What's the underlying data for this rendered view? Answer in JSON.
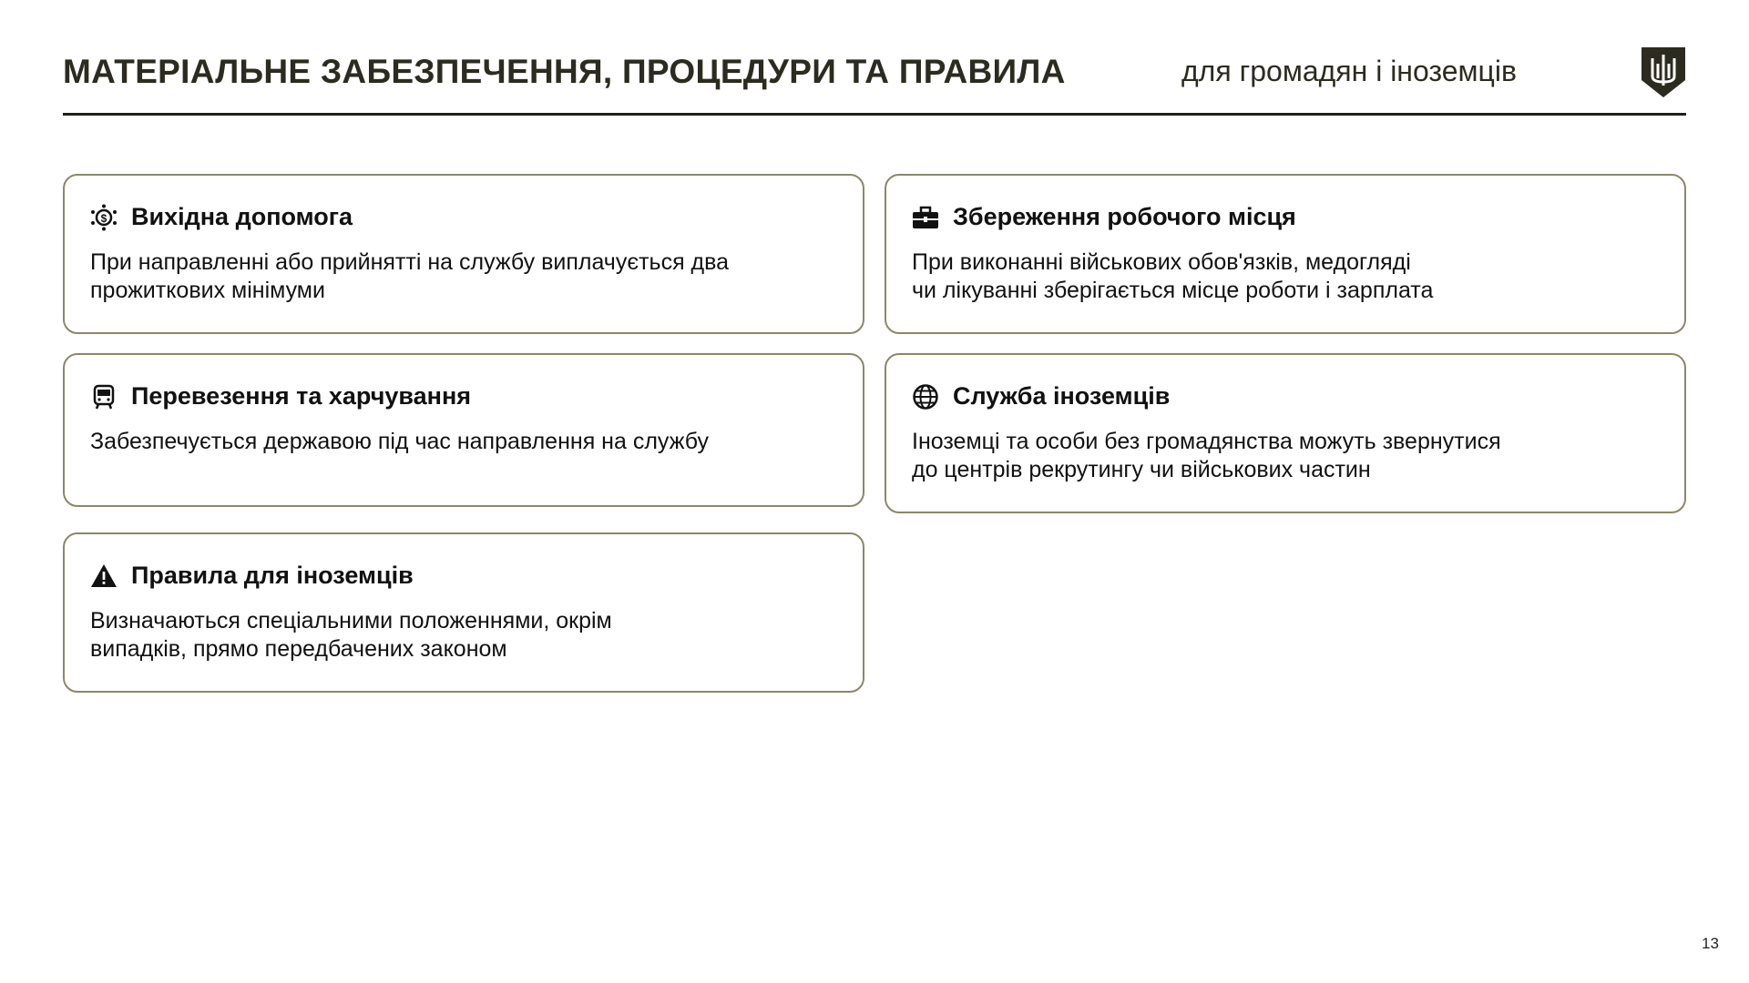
{
  "header": {
    "title": "МАТЕРІАЛЬНЕ ЗАБЕЗПЕЧЕННЯ, ПРОЦЕДУРИ ТА ПРАВИЛА",
    "subtitle": "для громадян і іноземців",
    "logo_icon": "trident-shield-icon"
  },
  "cards": [
    {
      "icon": "money-gear-icon",
      "title": "Вихідна допомога",
      "text": "При направленні або прийнятті на службу виплачується два\nпрожиткових мінімуми"
    },
    {
      "icon": "briefcase-icon",
      "title": "Збереження робочого місця",
      "text": "При виконанні військових обов'язків, медогляді\nчи лікуванні зберігається місце роботи і зарплата"
    },
    {
      "icon": "bus-icon",
      "title": "Перевезення та харчування",
      "text": "Забезпечується державою під час направлення на службу"
    },
    {
      "icon": "globe-icon",
      "title": "Служба іноземців",
      "text": "Іноземці та особи без громадянства можуть звернутися\nдо центрів рекрутингу чи військових частин"
    },
    {
      "icon": "warning-icon",
      "title": "Правила для іноземців",
      "text": "Визначаються спеціальними положеннями, окрім\nвипадків, прямо передбачених законом"
    }
  ],
  "page_number": "13",
  "colors": {
    "border": "#8a8868",
    "title": "#2b2b1f"
  }
}
